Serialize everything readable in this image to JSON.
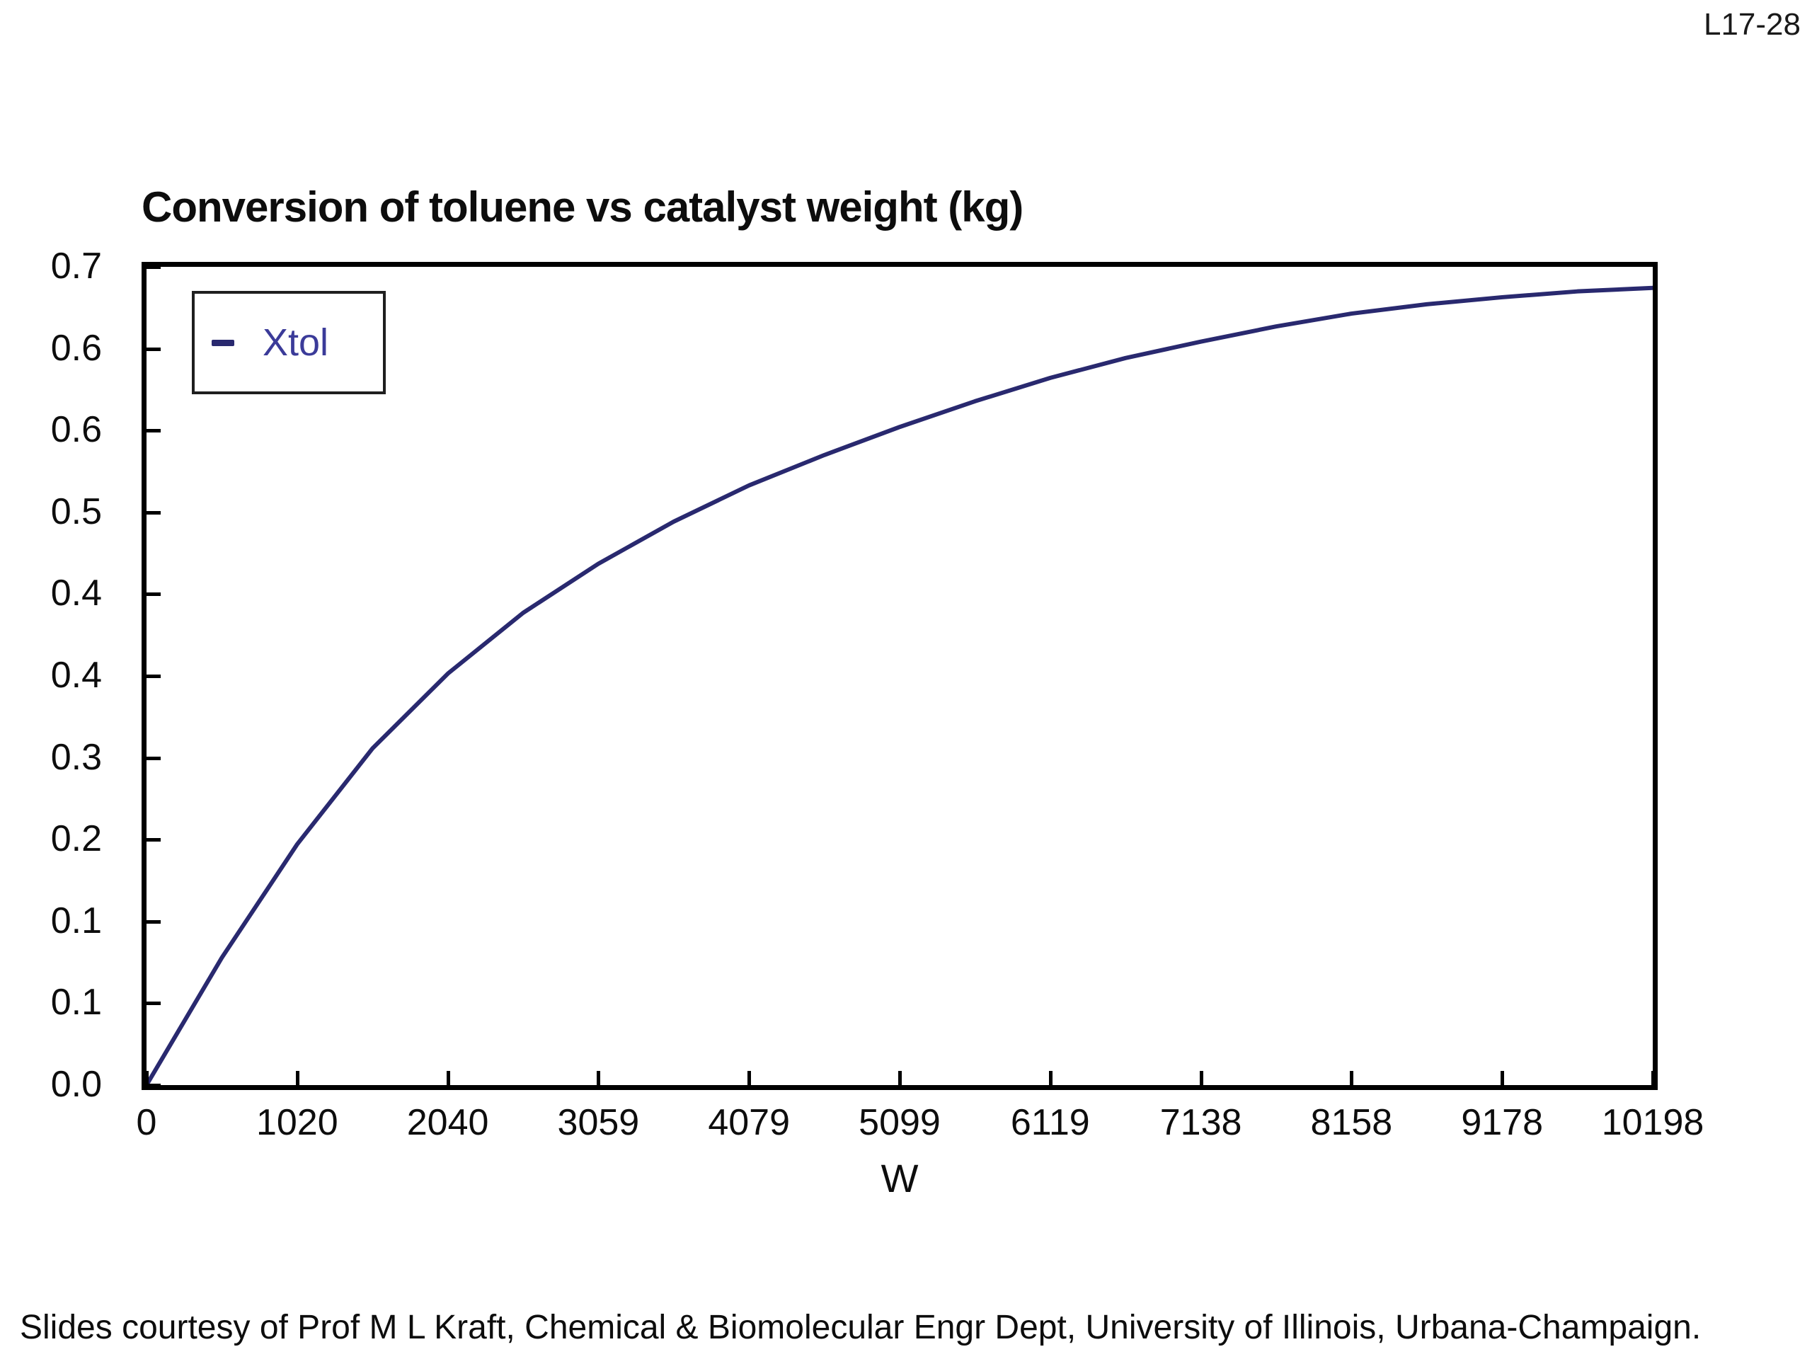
{
  "page": {
    "slide_code": "L17-28",
    "caption": "Slides courtesy of Prof M L Kraft, Chemical & Biomolecular Engr Dept, University of Illinois, Urbana-Champaign."
  },
  "colors": {
    "curve": "#29296f",
    "legend_text": "#3b3b99",
    "axis": "#000000",
    "text": "#0d0d0d"
  },
  "chart_data": {
    "type": "line",
    "title": "Conversion of toluene vs catalyst weight (kg)",
    "xlabel": "W",
    "ylabel": "",
    "xlim": [
      0,
      10198
    ],
    "ylim": [
      0,
      0.7
    ],
    "grid": false,
    "legend_position": "upper-left",
    "x_ticks": [
      0,
      1020,
      2040,
      3059,
      4079,
      5099,
      6119,
      7138,
      8158,
      9178,
      10198
    ],
    "x_tick_labels": [
      "0",
      "1020",
      "2040",
      "3059",
      "4079",
      "5099",
      "6119",
      "7138",
      "8158",
      "9178",
      "10198"
    ],
    "y_tick_labels_top_to_bottom": [
      "0.7",
      "0.6",
      "0.6",
      "0.5",
      "0.4",
      "0.4",
      "0.3",
      "0.2",
      "0.1",
      "0.1",
      "0.0"
    ],
    "values_at_x_ticks": [
      0.0,
      0.21,
      0.35,
      0.45,
      0.51,
      0.56,
      0.61,
      0.64,
      0.66,
      0.67,
      0.68
    ],
    "series": [
      {
        "name": "Xtol",
        "color": "#29296f",
        "x": [
          0,
          510,
          1020,
          1530,
          2040,
          2550,
          3059,
          3569,
          4079,
          4589,
          5099,
          5609,
          6119,
          6629,
          7138,
          7648,
          8158,
          8668,
          9178,
          9688,
          10198
        ],
        "y": [
          0.0,
          0.109,
          0.206,
          0.288,
          0.352,
          0.404,
          0.446,
          0.482,
          0.513,
          0.539,
          0.563,
          0.585,
          0.605,
          0.622,
          0.636,
          0.649,
          0.66,
          0.668,
          0.674,
          0.679,
          0.682
        ]
      }
    ]
  }
}
